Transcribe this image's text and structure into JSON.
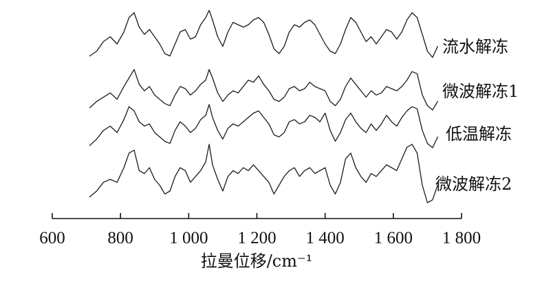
{
  "chart_data": {
    "type": "line",
    "title": "",
    "xlabel": "拉曼位移/cm⁻¹",
    "ylabel": "",
    "xlim": [
      600,
      1800
    ],
    "xticks": [
      600,
      800,
      1000,
      1200,
      1400,
      1600,
      1800
    ],
    "xtick_labels": [
      "600",
      "800",
      "1 000",
      "1 200",
      "1 400",
      "1 600",
      "1 800"
    ],
    "y_axis_shown": false,
    "grid": false,
    "legend": "labels at right end of each curve",
    "x": [
      710,
      730,
      750,
      770,
      790,
      810,
      825,
      840,
      855,
      870,
      885,
      900,
      915,
      930,
      945,
      960,
      975,
      990,
      1005,
      1020,
      1035,
      1050,
      1060,
      1070,
      1085,
      1100,
      1115,
      1130,
      1145,
      1160,
      1175,
      1190,
      1205,
      1220,
      1235,
      1250,
      1265,
      1280,
      1295,
      1310,
      1325,
      1340,
      1355,
      1370,
      1385,
      1400,
      1415,
      1430,
      1445,
      1460,
      1475,
      1490,
      1505,
      1520,
      1535,
      1550,
      1565,
      1580,
      1595,
      1610,
      1625,
      1640,
      1655,
      1670,
      1685,
      1700,
      1715,
      1730
    ],
    "series": [
      {
        "name": "流水解冻",
        "color": "#1a1a1a",
        "values": [
          0.05,
          0.15,
          0.35,
          0.45,
          0.3,
          0.55,
          0.85,
          0.95,
          0.65,
          0.5,
          0.6,
          0.45,
          0.3,
          0.1,
          0.05,
          0.3,
          0.55,
          0.6,
          0.4,
          0.45,
          0.7,
          0.85,
          1.0,
          0.8,
          0.45,
          0.25,
          0.55,
          0.75,
          0.7,
          0.65,
          0.7,
          0.8,
          0.85,
          0.75,
          0.5,
          0.2,
          0.1,
          0.25,
          0.55,
          0.7,
          0.65,
          0.75,
          0.8,
          0.7,
          0.5,
          0.3,
          0.15,
          0.1,
          0.3,
          0.6,
          0.85,
          0.75,
          0.55,
          0.35,
          0.45,
          0.3,
          0.45,
          0.6,
          0.55,
          0.4,
          0.55,
          0.8,
          0.95,
          0.85,
          0.5,
          0.15,
          0.02,
          0.25
        ]
      },
      {
        "name": "微波解冻1",
        "color": "#1a1a1a",
        "values": [
          0.05,
          0.2,
          0.3,
          0.4,
          0.25,
          0.55,
          0.75,
          0.95,
          0.6,
          0.45,
          0.55,
          0.35,
          0.25,
          0.15,
          0.1,
          0.35,
          0.55,
          0.5,
          0.35,
          0.45,
          0.6,
          0.7,
          0.95,
          0.75,
          0.4,
          0.2,
          0.35,
          0.45,
          0.4,
          0.55,
          0.7,
          0.65,
          0.8,
          0.6,
          0.45,
          0.25,
          0.2,
          0.3,
          0.5,
          0.55,
          0.45,
          0.5,
          0.65,
          0.55,
          0.5,
          0.45,
          0.2,
          0.1,
          0.25,
          0.55,
          0.75,
          0.6,
          0.45,
          0.3,
          0.45,
          0.35,
          0.4,
          0.55,
          0.5,
          0.45,
          0.55,
          0.7,
          0.9,
          0.85,
          0.35,
          0.1,
          0.0,
          0.2
        ]
      },
      {
        "name": "低温解冻",
        "color": "#1a1a1a",
        "values": [
          0.05,
          0.2,
          0.4,
          0.5,
          0.35,
          0.65,
          0.95,
          0.85,
          0.6,
          0.5,
          0.55,
          0.35,
          0.25,
          0.15,
          0.1,
          0.4,
          0.6,
          0.5,
          0.35,
          0.45,
          0.65,
          0.75,
          1.0,
          0.7,
          0.4,
          0.2,
          0.45,
          0.55,
          0.5,
          0.6,
          0.7,
          0.8,
          0.85,
          0.7,
          0.55,
          0.3,
          0.25,
          0.35,
          0.6,
          0.65,
          0.55,
          0.6,
          0.75,
          0.7,
          0.6,
          0.8,
          0.4,
          0.15,
          0.35,
          0.65,
          0.8,
          0.6,
          0.45,
          0.35,
          0.55,
          0.4,
          0.55,
          0.75,
          0.6,
          0.5,
          0.7,
          0.85,
          0.95,
          0.9,
          0.4,
          0.1,
          0.0,
          0.25
        ]
      },
      {
        "name": "微波解冻2",
        "color": "#1a1a1a",
        "values": [
          0.1,
          0.2,
          0.35,
          0.4,
          0.35,
          0.6,
          0.85,
          0.9,
          0.55,
          0.5,
          0.6,
          0.4,
          0.3,
          0.15,
          0.2,
          0.45,
          0.6,
          0.55,
          0.35,
          0.45,
          0.55,
          0.7,
          1.0,
          0.65,
          0.4,
          0.2,
          0.45,
          0.55,
          0.5,
          0.6,
          0.55,
          0.65,
          0.55,
          0.45,
          0.35,
          0.15,
          0.3,
          0.45,
          0.55,
          0.6,
          0.45,
          0.55,
          0.6,
          0.5,
          0.55,
          0.6,
          0.3,
          0.15,
          0.35,
          0.75,
          0.85,
          0.6,
          0.45,
          0.35,
          0.5,
          0.45,
          0.55,
          0.65,
          0.6,
          0.55,
          0.75,
          0.95,
          1.0,
          0.85,
          0.3,
          0.0,
          0.05,
          0.3
        ]
      }
    ]
  }
}
